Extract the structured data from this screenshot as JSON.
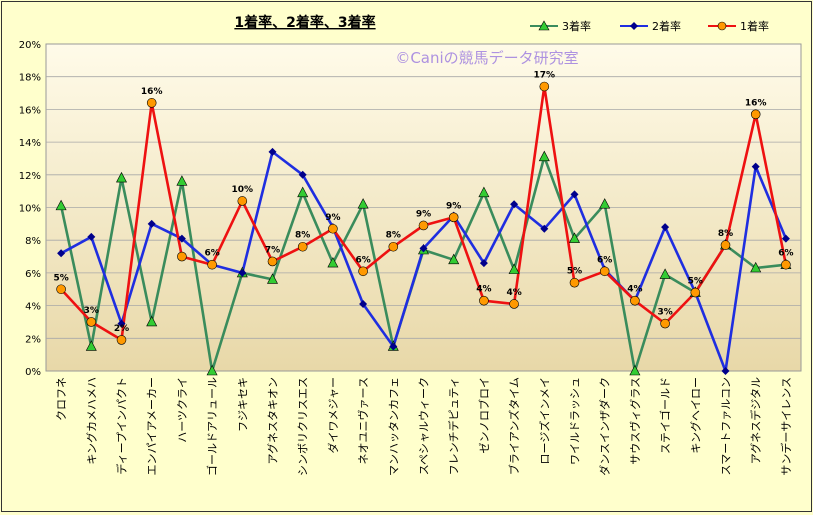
{
  "chart_data": {
    "type": "line",
    "title": "1着率、2着率、3着率",
    "watermark": "©Caniの競馬データ研究室",
    "xlabel": "",
    "ylabel": "",
    "ylim": [
      0,
      20
    ],
    "y_ticks": [
      "0%",
      "2%",
      "4%",
      "6%",
      "8%",
      "10%",
      "12%",
      "14%",
      "16%",
      "18%",
      "20%"
    ],
    "grid": true,
    "legend_position": "top-right",
    "categories": [
      "クロフネ",
      "キングカメハメハ",
      "ディープインパクト",
      "エンパイアメーカー",
      "ハーツクライ",
      "ゴールドアリュール",
      "フジキセキ",
      "アグネスタキオン",
      "シンボリクリスエス",
      "ダイワメジャー",
      "ネオユニヴァース",
      "マンハッタンカフェ",
      "スペシャルウィーク",
      "フレンチデピュティ",
      "ゼンノロブロイ",
      "ブライアンズタイム",
      "ロージズインメイ",
      "ワイルドラッシュ",
      "ダンスインザダーク",
      "サウスヴィグラス",
      "ステイゴールド",
      "キングヘイロー",
      "スマートファルコン",
      "アグネスデジタル",
      "サンデーサイレンス"
    ],
    "series": [
      {
        "name": "3着率",
        "color": "#3a8c5c",
        "marker": "triangle",
        "marker_color": "#33cc33",
        "values": [
          10.1,
          1.5,
          11.8,
          3.0,
          11.6,
          0.0,
          6.0,
          5.6,
          10.9,
          6.6,
          10.2,
          1.5,
          7.4,
          6.8,
          10.9,
          6.2,
          13.1,
          8.1,
          10.2,
          0.0,
          5.9,
          4.8,
          7.7,
          6.3,
          6.5
        ]
      },
      {
        "name": "2着率",
        "color": "#1f2ee0",
        "marker": "diamond",
        "marker_color": "#00008b",
        "values": [
          7.2,
          8.2,
          2.9,
          9.0,
          8.1,
          6.5,
          6.0,
          13.4,
          12.0,
          8.8,
          4.1,
          1.5,
          7.5,
          9.5,
          6.6,
          10.2,
          8.7,
          10.8,
          6.2,
          4.3,
          8.8,
          4.8,
          0.0,
          12.5,
          8.1
        ]
      },
      {
        "name": "1着率",
        "color": "#ee1111",
        "marker": "circle",
        "marker_color": "#ff9900",
        "values": [
          5.0,
          3.0,
          1.9,
          16.4,
          7.0,
          6.5,
          10.4,
          6.7,
          7.6,
          8.7,
          6.1,
          7.6,
          8.9,
          9.4,
          4.3,
          4.1,
          17.4,
          5.4,
          6.1,
          4.3,
          2.9,
          4.8,
          7.7,
          15.7,
          6.5
        ],
        "data_labels": [
          "5%",
          "3%",
          "2%",
          "16%",
          "",
          "6%",
          "10%",
          "7%",
          "8%",
          "9%",
          "6%",
          "8%",
          "9%",
          "9%",
          "4%",
          "4%",
          "17%",
          "5%",
          "6%",
          "4%",
          "3%",
          "5%",
          "8%",
          "16%",
          "6%"
        ]
      }
    ]
  }
}
